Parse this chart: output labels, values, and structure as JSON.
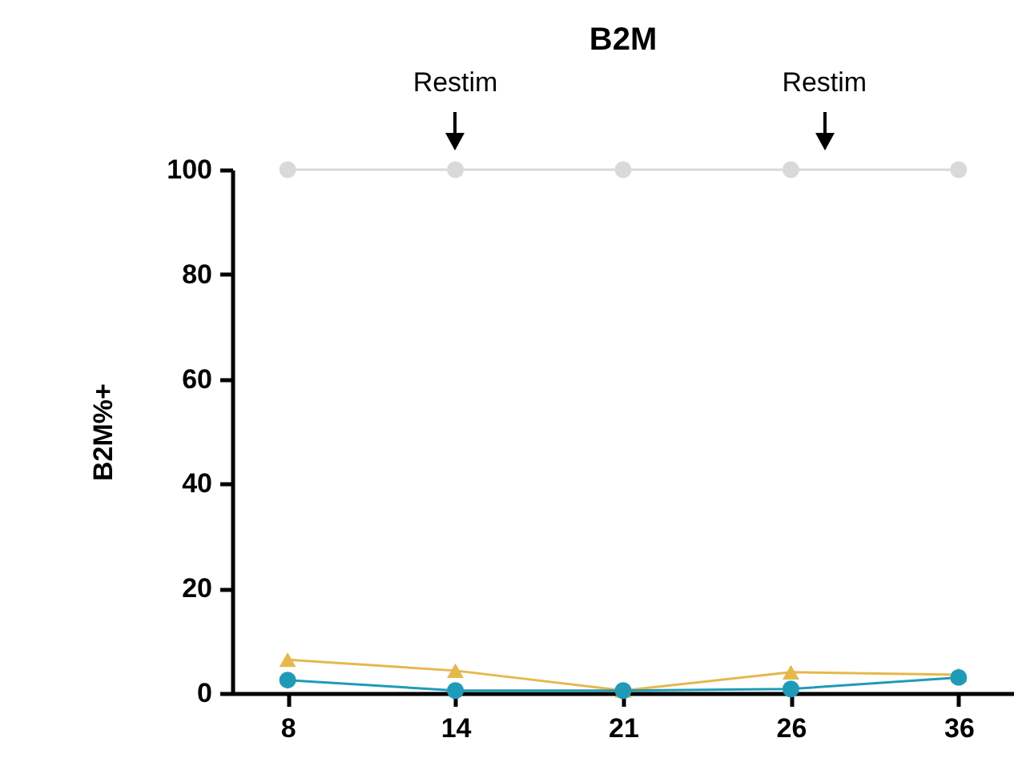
{
  "chart_data": {
    "type": "line",
    "title": "B2M",
    "ylabel": "B2M%+",
    "categories": [
      "8",
      "14",
      "21",
      "26",
      "36"
    ],
    "series": [
      {
        "color": "#d9d9d9",
        "marker": "circle",
        "values": [
          100,
          100,
          100,
          100,
          100
        ]
      },
      {
        "color": "#e6b84c",
        "marker": "triangle",
        "values": [
          6.4,
          4.3,
          0.5,
          4,
          3.5
        ]
      },
      {
        "color": "#1f9bb8",
        "marker": "circle",
        "values": [
          2.5,
          0.5,
          0.5,
          0.8,
          3
        ]
      }
    ],
    "ylim": [
      0,
      100
    ],
    "yticks": [
      0,
      20,
      40,
      60,
      80,
      100
    ],
    "annotations": [
      "Restim",
      "Restim"
    ]
  }
}
